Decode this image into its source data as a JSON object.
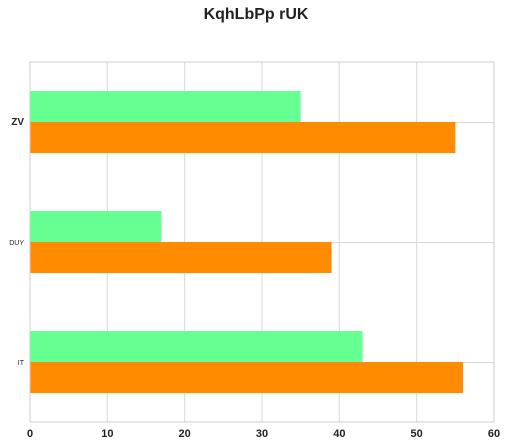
{
  "chart_data": {
    "type": "bar",
    "orientation": "horizontal",
    "title": "KqhLbPp rUK",
    "xlabel": "",
    "ylabel": "",
    "categories": [
      "ZV",
      "DUY",
      "IT"
    ],
    "series": [
      {
        "color": "#66FF91",
        "values": [
          35,
          17,
          43
        ]
      },
      {
        "color": "#FF8C00",
        "values": [
          55,
          39,
          56
        ]
      }
    ],
    "xlim": [
      0,
      60
    ],
    "xticks": [
      0,
      10,
      20,
      30,
      40,
      50,
      60
    ],
    "grid": true,
    "legend": "none"
  }
}
